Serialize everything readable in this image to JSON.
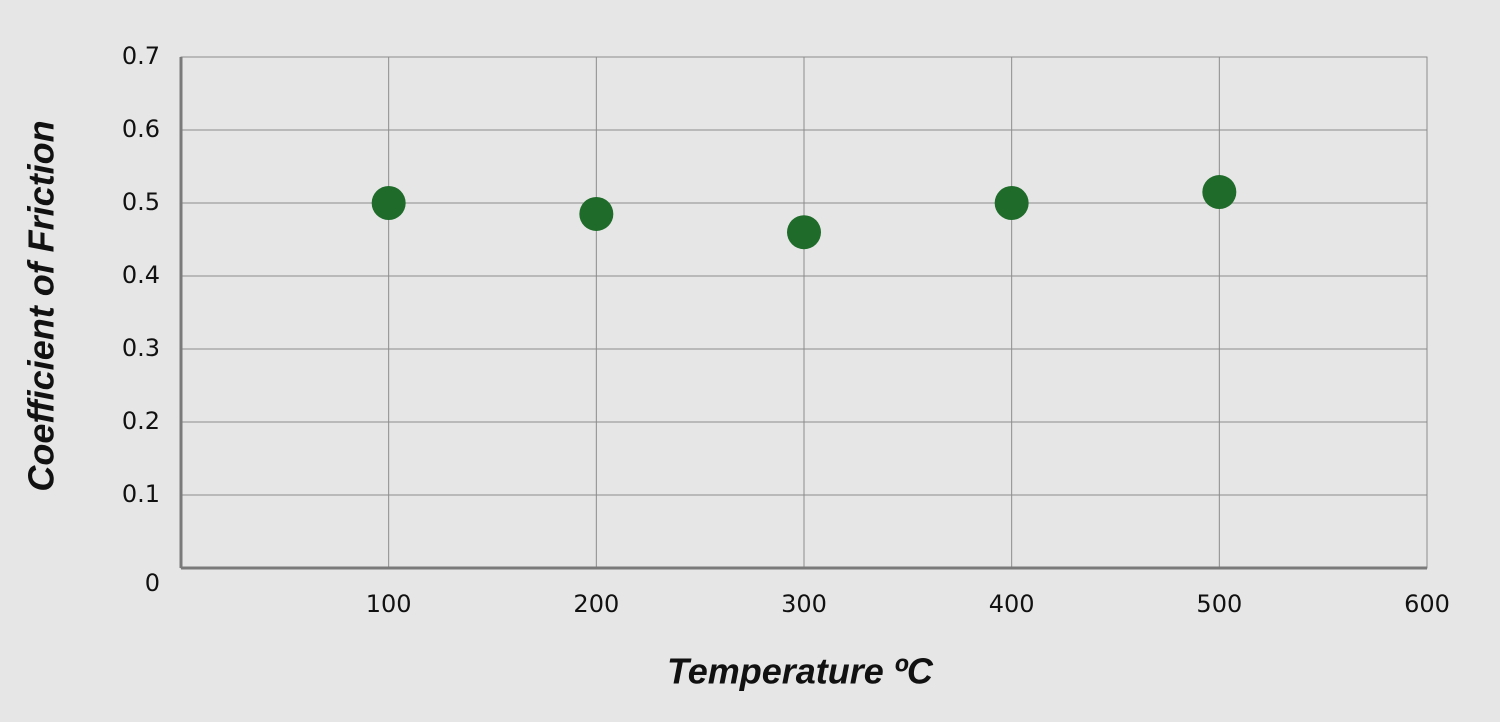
{
  "chart_data": {
    "type": "scatter",
    "x_label": "Temperature ºC",
    "y_label": "Coefficient of Friction",
    "x": [
      100,
      200,
      300,
      400,
      500
    ],
    "values": [
      0.5,
      0.485,
      0.46,
      0.5,
      0.515
    ],
    "color": "#1e6b2a",
    "xlim": [
      0,
      600
    ],
    "xticks": [
      100,
      200,
      300,
      400,
      500,
      600
    ],
    "ylim": [
      0,
      0.7
    ],
    "yticks": [
      0,
      0.1,
      0.2,
      0.3,
      0.4,
      0.5,
      0.6,
      0.7
    ],
    "grid": true
  }
}
